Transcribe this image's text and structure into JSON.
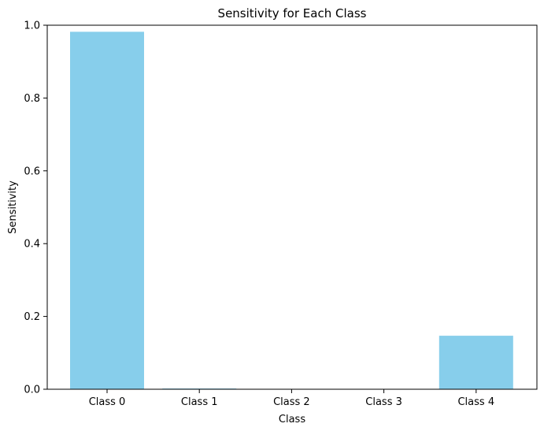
{
  "chart_data": {
    "type": "bar",
    "title": "Sensitivity for Each Class",
    "xlabel": "Class",
    "ylabel": "Sensitivity",
    "categories": [
      "Class 0",
      "Class 1",
      "Class 2",
      "Class 3",
      "Class 4"
    ],
    "values": [
      0.982,
      0.002,
      0.0,
      0.0,
      0.147
    ],
    "ylim": [
      0,
      1.0
    ],
    "yticks": [
      "0.0",
      "0.2",
      "0.4",
      "0.6",
      "0.8",
      "1.0"
    ],
    "ytick_values": [
      0,
      0.2,
      0.4,
      0.6,
      0.8,
      1.0
    ],
    "bar_color": "#87ceeb",
    "grid": false,
    "legend": "none"
  }
}
